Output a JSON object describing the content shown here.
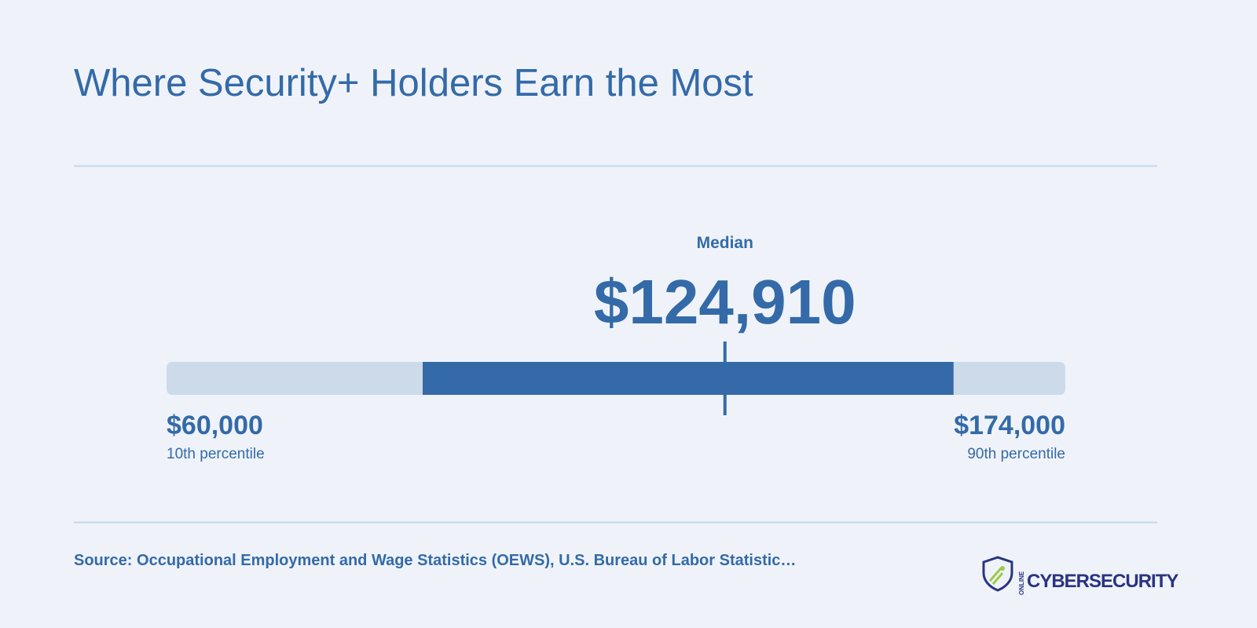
{
  "chart_data": {
    "type": "range",
    "title": "Where Security+ Holders Earn the Most",
    "categories": [
      "10th percentile",
      "Median",
      "90th percentile"
    ],
    "values": [
      60000,
      124910,
      174000
    ],
    "value_labels": [
      "$60,000",
      "$124,910",
      "$174,000"
    ],
    "xlim": [
      5000,
      198000
    ],
    "track_color": "#cddaea",
    "color": "#346aa8",
    "source": "Source: Occupational Employment and Wage Statistics (OEWS), U.S. Bureau of Labor Statistic…"
  },
  "logo": {
    "small": "ONLINE",
    "name": "CYBERSECURITY"
  }
}
